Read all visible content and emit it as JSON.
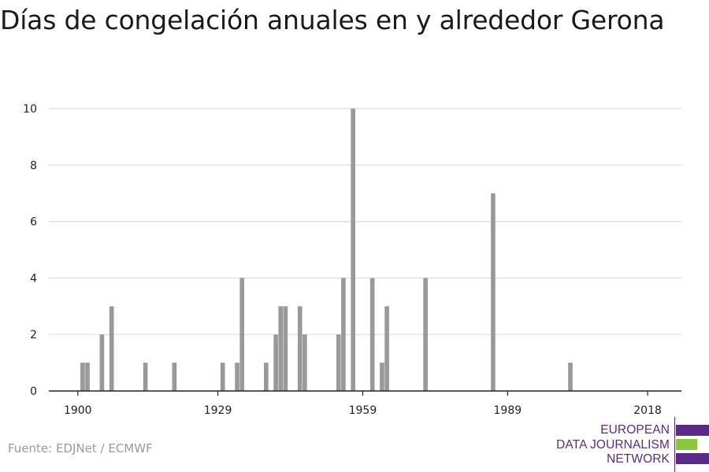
{
  "title": "Días de congelación anuales en y alrededor Gerona",
  "source": "Fuente: EDJNet / ECMWF",
  "logo": {
    "lines": [
      "EUROPEAN",
      "DATA JOURNALISM",
      "NETWORK"
    ],
    "colors": {
      "purple": "#5b2a86",
      "green": "#8cc63f"
    }
  },
  "chart_data": {
    "type": "bar",
    "title": "Días de congelación anuales en y alrededor Gerona",
    "xlabel": "",
    "ylabel": "",
    "xlim": [
      1894,
      2025
    ],
    "ylim": [
      0,
      10
    ],
    "x_ticks": [
      1900,
      1929,
      1959,
      1989,
      2018
    ],
    "y_ticks": [
      0,
      2,
      4,
      6,
      8,
      10
    ],
    "grid": true,
    "bar_color": "#999999",
    "points": [
      {
        "x": 1901,
        "y": 1
      },
      {
        "x": 1902,
        "y": 1
      },
      {
        "x": 1905,
        "y": 2
      },
      {
        "x": 1907,
        "y": 3
      },
      {
        "x": 1914,
        "y": 1
      },
      {
        "x": 1920,
        "y": 1
      },
      {
        "x": 1930,
        "y": 1
      },
      {
        "x": 1933,
        "y": 1
      },
      {
        "x": 1934,
        "y": 4
      },
      {
        "x": 1939,
        "y": 1
      },
      {
        "x": 1941,
        "y": 2
      },
      {
        "x": 1942,
        "y": 3
      },
      {
        "x": 1943,
        "y": 3
      },
      {
        "x": 1946,
        "y": 3
      },
      {
        "x": 1947,
        "y": 2
      },
      {
        "x": 1954,
        "y": 2
      },
      {
        "x": 1955,
        "y": 4
      },
      {
        "x": 1957,
        "y": 10
      },
      {
        "x": 1961,
        "y": 4
      },
      {
        "x": 1963,
        "y": 1
      },
      {
        "x": 1964,
        "y": 3
      },
      {
        "x": 1972,
        "y": 4
      },
      {
        "x": 1986,
        "y": 7
      },
      {
        "x": 2002,
        "y": 1
      }
    ]
  }
}
